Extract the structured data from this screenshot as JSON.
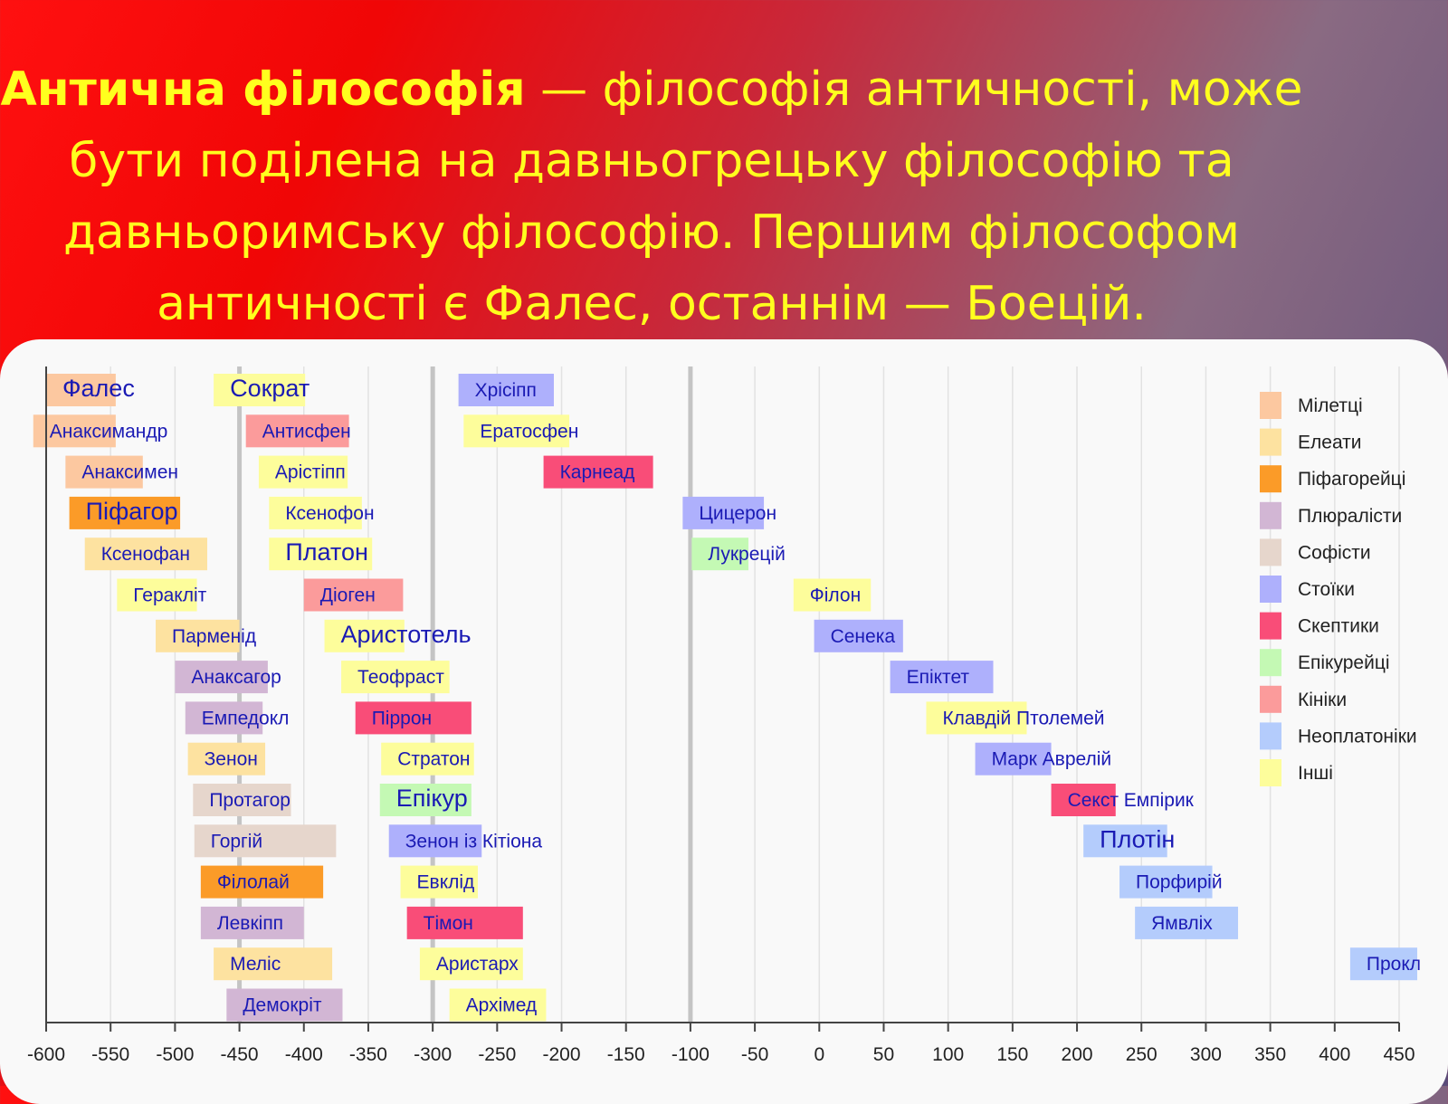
{
  "heading": {
    "bold": "Антична філософія",
    "text": " — філософія античності, може бути поділена на давньогрецьку філософію та давньоримську філософію. Першим філософом античності є Фалес, останнім — Боецій."
  },
  "chart_data": {
    "type": "timeline",
    "x_ticks": [
      -600,
      -550,
      -500,
      -450,
      -400,
      -350,
      -300,
      -250,
      -200,
      -150,
      -100,
      -50,
      0,
      50,
      100,
      150,
      200,
      250,
      300,
      350,
      400,
      450
    ],
    "xlim": [
      -600,
      450
    ],
    "grid": true,
    "major_lines": [
      -450,
      -300,
      -100
    ],
    "legend_position": "right",
    "categories": [
      {
        "name": "Мілетці",
        "color": "#fcc8a0"
      },
      {
        "name": "Елеати",
        "color": "#fde2a0"
      },
      {
        "name": "Піфагорейці",
        "color": "#fb9b28"
      },
      {
        "name": "Плюралісти",
        "color": "#d2b6d4"
      },
      {
        "name": "Софісти",
        "color": "#e6d6cc"
      },
      {
        "name": "Стоїки",
        "color": "#aeb0fc"
      },
      {
        "name": "Скептики",
        "color": "#f94d78"
      },
      {
        "name": "Епікурейці",
        "color": "#c4f9b4"
      },
      {
        "name": "Кініки",
        "color": "#fb9b9b"
      },
      {
        "name": "Неоплатоніки",
        "color": "#b4ccfc"
      },
      {
        "name": "Інші",
        "color": "#fdfd9b"
      }
    ],
    "philosophers": [
      {
        "name": "Фалес",
        "start": -600,
        "end": -546,
        "row": 0,
        "cat": 0,
        "big": true
      },
      {
        "name": "Сократ",
        "start": -470,
        "end": -399,
        "row": 0,
        "cat": 10,
        "big": true
      },
      {
        "name": "Хрісіпп",
        "start": -280,
        "end": -206,
        "row": 0,
        "cat": 5
      },
      {
        "name": "Анаксимандр",
        "start": -610,
        "end": -546,
        "row": 1,
        "cat": 0
      },
      {
        "name": "Антисфен",
        "start": -445,
        "end": -365,
        "row": 1,
        "cat": 8
      },
      {
        "name": "Ератосфен",
        "start": -276,
        "end": -194,
        "row": 1,
        "cat": 10
      },
      {
        "name": "Анаксимен",
        "start": -585,
        "end": -525,
        "row": 2,
        "cat": 0
      },
      {
        "name": "Арістіпп",
        "start": -435,
        "end": -366,
        "row": 2,
        "cat": 10
      },
      {
        "name": "Карнеад",
        "start": -214,
        "end": -129,
        "row": 2,
        "cat": 6
      },
      {
        "name": "Піфагор",
        "start": -582,
        "end": -496,
        "row": 3,
        "cat": 2,
        "big": true
      },
      {
        "name": "Ксенофон",
        "start": -427,
        "end": -355,
        "row": 3,
        "cat": 10
      },
      {
        "name": "Цицерон",
        "start": -106,
        "end": -43,
        "row": 3,
        "cat": 5
      },
      {
        "name": "Ксенофан",
        "start": -570,
        "end": -475,
        "row": 4,
        "cat": 1
      },
      {
        "name": "Платон",
        "start": -427,
        "end": -347,
        "row": 4,
        "cat": 10,
        "big": true
      },
      {
        "name": "Лукрецій",
        "start": -99,
        "end": -55,
        "row": 4,
        "cat": 7
      },
      {
        "name": "Геракліт",
        "start": -545,
        "end": -483,
        "row": 5,
        "cat": 10
      },
      {
        "name": "Діоген",
        "start": -400,
        "end": -323,
        "row": 5,
        "cat": 8
      },
      {
        "name": "Філон",
        "start": -20,
        "end": 40,
        "row": 5,
        "cat": 10
      },
      {
        "name": "Парменід",
        "start": -515,
        "end": -450,
        "row": 6,
        "cat": 1
      },
      {
        "name": "Аристотель",
        "start": -384,
        "end": -322,
        "row": 6,
        "cat": 10,
        "big": true
      },
      {
        "name": "Сенека",
        "start": -4,
        "end": 65,
        "row": 6,
        "cat": 5
      },
      {
        "name": "Анаксагор",
        "start": -500,
        "end": -428,
        "row": 7,
        "cat": 3
      },
      {
        "name": "Теофраст",
        "start": -371,
        "end": -287,
        "row": 7,
        "cat": 10
      },
      {
        "name": "Епіктет",
        "start": 55,
        "end": 135,
        "row": 7,
        "cat": 5
      },
      {
        "name": "Емпедокл",
        "start": -492,
        "end": -432,
        "row": 8,
        "cat": 3
      },
      {
        "name": "Піррон",
        "start": -360,
        "end": -270,
        "row": 8,
        "cat": 6
      },
      {
        "name": "Клавдій Птолемей",
        "start": 83,
        "end": 161,
        "row": 8,
        "cat": 10
      },
      {
        "name": "Зенон",
        "start": -490,
        "end": -430,
        "row": 9,
        "cat": 1
      },
      {
        "name": "Стратон",
        "start": -340,
        "end": -268,
        "row": 9,
        "cat": 10
      },
      {
        "name": "Марк Аврелій",
        "start": 121,
        "end": 180,
        "row": 9,
        "cat": 5
      },
      {
        "name": "Протагор",
        "start": -486,
        "end": -410,
        "row": 10,
        "cat": 4
      },
      {
        "name": "Епікур",
        "start": -341,
        "end": -270,
        "row": 10,
        "cat": 7,
        "big": true
      },
      {
        "name": "Секст Емпірик",
        "start": 180,
        "end": 230,
        "row": 10,
        "cat": 6
      },
      {
        "name": "Горгій",
        "start": -485,
        "end": -375,
        "row": 11,
        "cat": 4
      },
      {
        "name": "Зенон із Кітіона",
        "start": -334,
        "end": -262,
        "row": 11,
        "cat": 5
      },
      {
        "name": "Плотін",
        "start": 205,
        "end": 270,
        "row": 11,
        "cat": 9,
        "big": true
      },
      {
        "name": "Філолай",
        "start": -480,
        "end": -385,
        "row": 12,
        "cat": 2
      },
      {
        "name": "Евклід",
        "start": -325,
        "end": -265,
        "row": 12,
        "cat": 10
      },
      {
        "name": "Порфирій",
        "start": 233,
        "end": 305,
        "row": 12,
        "cat": 9
      },
      {
        "name": "Левкіпп",
        "start": -480,
        "end": -400,
        "row": 13,
        "cat": 3
      },
      {
        "name": "Тімон",
        "start": -320,
        "end": -230,
        "row": 13,
        "cat": 6
      },
      {
        "name": "Ямвліх",
        "start": 245,
        "end": 325,
        "row": 13,
        "cat": 9
      },
      {
        "name": "Меліс",
        "start": -470,
        "end": -378,
        "row": 14,
        "cat": 1
      },
      {
        "name": "Аристарх",
        "start": -310,
        "end": -230,
        "row": 14,
        "cat": 10
      },
      {
        "name": "Прокл",
        "start": 412,
        "end": 485,
        "row": 14,
        "cat": 9
      },
      {
        "name": "Демокріт",
        "start": -460,
        "end": -370,
        "row": 15,
        "cat": 3
      },
      {
        "name": "Архімед",
        "start": -287,
        "end": -212,
        "row": 15,
        "cat": 10
      }
    ]
  }
}
